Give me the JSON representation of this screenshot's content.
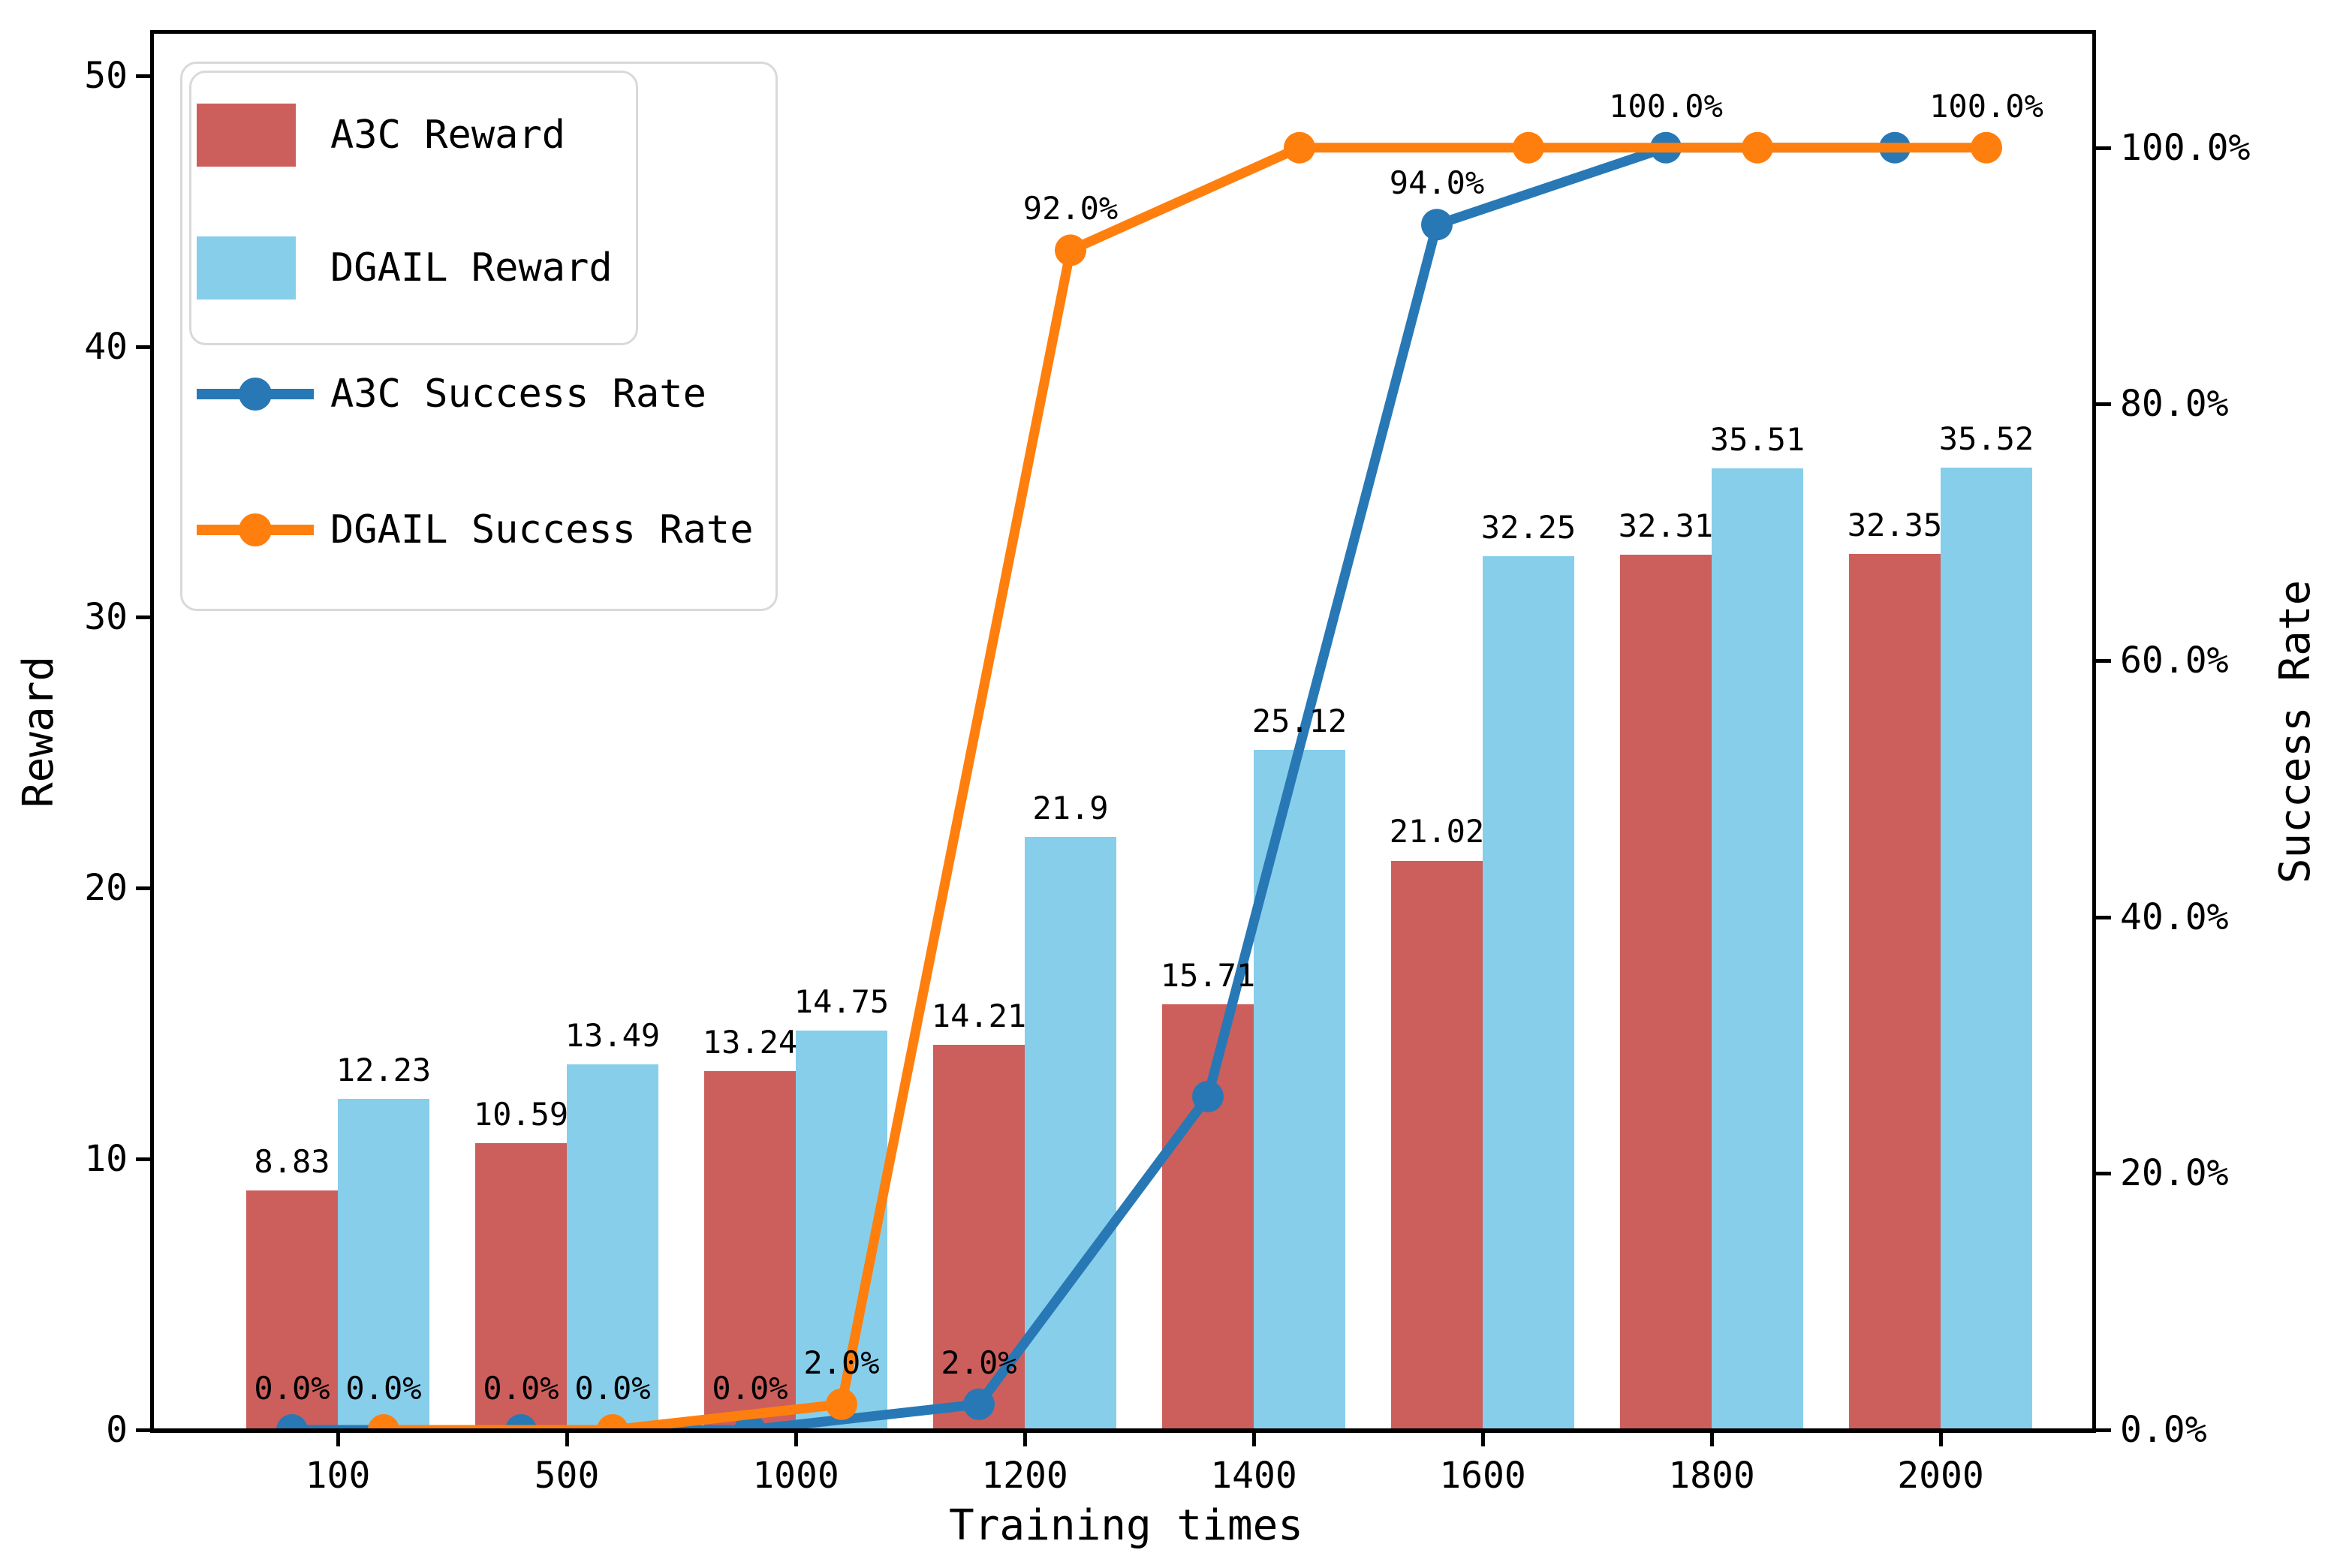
{
  "chart_data": {
    "type": "combo: grouped bar + line (dual y-axis)",
    "categories": [
      100,
      500,
      1000,
      1200,
      1400,
      1600,
      1800,
      2000
    ],
    "xlabel": "Training times",
    "grid": false,
    "legend_position": "upper left",
    "axis_left": {
      "label": "Reward",
      "ticks": [
        0,
        10,
        20,
        30,
        40,
        50
      ],
      "min": 0,
      "max": 51.6
    },
    "axis_right": {
      "label": "Success Rate",
      "tick_percents": [
        0,
        20,
        40,
        60,
        80,
        100
      ],
      "tick_labels": [
        "0.0%",
        "20.0%",
        "40.0%",
        "60.0%",
        "80.0%",
        "100.0%"
      ],
      "min_pct": 0,
      "max_pct": 109
    },
    "series": [
      {
        "name": "A3C Reward",
        "kind": "bar",
        "axis": "left",
        "color": "#cc5f5c",
        "values": [
          8.83,
          10.59,
          13.24,
          14.21,
          15.71,
          21.02,
          32.31,
          32.35
        ],
        "labels": [
          "8.83",
          "10.59",
          "13.24",
          "14.21",
          "15.71",
          "21.02",
          "32.31",
          "32.35"
        ]
      },
      {
        "name": "DGAIL Reward",
        "kind": "bar",
        "axis": "left",
        "color": "#87ceeb",
        "values": [
          12.23,
          13.49,
          14.75,
          21.9,
          25.12,
          32.25,
          35.51,
          35.52
        ],
        "labels": [
          "12.23",
          "13.49",
          "14.75",
          "21.9",
          "25.12",
          "32.25",
          "35.51",
          "35.52"
        ]
      },
      {
        "name": "A3C Success Rate",
        "kind": "line",
        "axis": "right",
        "color": "#2878b5",
        "values_pct": [
          0,
          0,
          0,
          2,
          26,
          94,
          100,
          100
        ],
        "labels": [
          "0.0%",
          "0.0%",
          "0.0%",
          "2.0%",
          null,
          "94.0%",
          "100.0%",
          null
        ]
      },
      {
        "name": "DGAIL Success Rate",
        "kind": "line",
        "axis": "right",
        "color": "#ff7f0e",
        "values_pct": [
          0,
          0,
          2,
          92,
          100,
          100,
          100,
          100
        ],
        "labels": [
          "0.0%",
          "0.0%",
          "2.0%",
          "92.0%",
          null,
          null,
          null,
          "100.0%"
        ]
      }
    ]
  },
  "colors": {
    "a3c_bar": "#cc5f5c",
    "dgail_bar": "#87ceeb",
    "a3c_line": "#2878b5",
    "dgail_line": "#ff7f0e",
    "axis": "#000000",
    "legend_border": "#d9d9d9",
    "background": "#ffffff"
  }
}
